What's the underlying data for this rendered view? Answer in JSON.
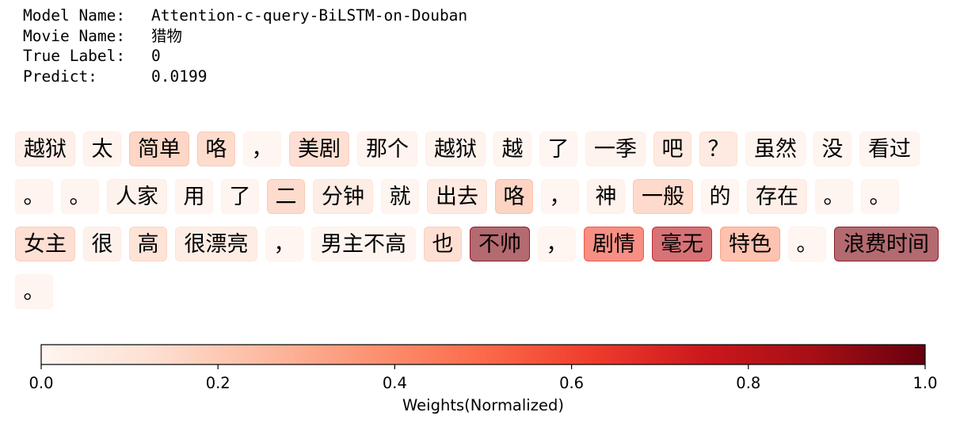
{
  "info": {
    "model_key": "Model Name:",
    "model_value": "Attention-c-query-BiLSTM-on-Douban",
    "movie_key": "Movie Name:",
    "movie_value": "猎物",
    "label_key": "True Label:",
    "label_value": "0",
    "predict_key": "Predict:",
    "predict_value": "0.0199"
  },
  "chart_data": {
    "type": "heatmap",
    "xlabel": "Weights(Normalized)",
    "colormap": "Reds",
    "range": [
      0.0,
      1.0
    ],
    "ticks": [
      "0.0",
      "0.2",
      "0.4",
      "0.6",
      "0.8",
      "1.0"
    ],
    "tokens": [
      [
        {
          "text": "越狱",
          "weight": 0.1
        },
        {
          "text": "太",
          "weight": 0.06
        },
        {
          "text": "简单",
          "weight": 0.25
        },
        {
          "text": "咯",
          "weight": 0.22
        },
        {
          "text": "，",
          "weight": 0.03
        },
        {
          "text": "美剧",
          "weight": 0.2
        },
        {
          "text": "那个",
          "weight": 0.05
        },
        {
          "text": "越狱",
          "weight": 0.06
        },
        {
          "text": "越",
          "weight": 0.04
        },
        {
          "text": "了",
          "weight": 0.03
        },
        {
          "text": "一季",
          "weight": 0.06
        },
        {
          "text": "吧",
          "weight": 0.14
        },
        {
          "text": "？",
          "weight": 0.14
        },
        {
          "text": "虽然",
          "weight": 0.04
        },
        {
          "text": "没",
          "weight": 0.04
        },
        {
          "text": "看过",
          "weight": 0.04
        }
      ],
      [
        {
          "text": "。",
          "weight": 0.05
        },
        {
          "text": "。",
          "weight": 0.04
        },
        {
          "text": "人家",
          "weight": 0.07
        },
        {
          "text": "用",
          "weight": 0.05
        },
        {
          "text": "了",
          "weight": 0.04
        },
        {
          "text": "二",
          "weight": 0.22
        },
        {
          "text": "分钟",
          "weight": 0.12
        },
        {
          "text": "就",
          "weight": 0.04
        },
        {
          "text": "出去",
          "weight": 0.14
        },
        {
          "text": "咯",
          "weight": 0.26
        },
        {
          "text": "，",
          "weight": 0.03
        },
        {
          "text": "神",
          "weight": 0.06
        },
        {
          "text": "一般",
          "weight": 0.23
        },
        {
          "text": "的",
          "weight": 0.03
        },
        {
          "text": "存在",
          "weight": 0.1
        },
        {
          "text": "。",
          "weight": 0.04
        },
        {
          "text": "。",
          "weight": 0.03
        }
      ],
      [
        {
          "text": "女主",
          "weight": 0.2
        },
        {
          "text": "很",
          "weight": 0.08
        },
        {
          "text": "高",
          "weight": 0.18
        },
        {
          "text": "很漂亮",
          "weight": 0.12
        },
        {
          "text": "，",
          "weight": 0.03
        },
        {
          "text": "男主不高",
          "weight": 0.04
        },
        {
          "text": "也",
          "weight": 0.2
        },
        {
          "text": "不帅",
          "weight": 0.95
        },
        {
          "text": "，",
          "weight": 0.03
        },
        {
          "text": "剧情",
          "weight": 0.6
        },
        {
          "text": "毫无",
          "weight": 0.8
        },
        {
          "text": "特色",
          "weight": 0.35
        },
        {
          "text": "。",
          "weight": 0.03
        },
        {
          "text": "浪费时间",
          "weight": 0.95
        }
      ],
      [
        {
          "text": "。",
          "weight": 0.04
        }
      ]
    ]
  }
}
